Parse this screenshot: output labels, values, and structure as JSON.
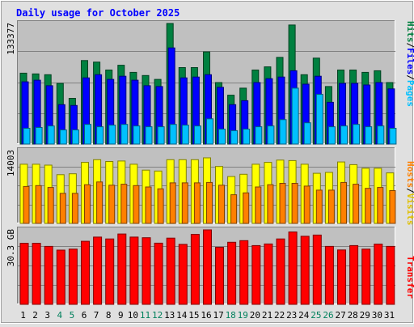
{
  "title": "Daily usage for October 2025",
  "chart_data": [
    {
      "type": "bar",
      "name": "hits-files-pages",
      "categories": [
        "1",
        "2",
        "3",
        "4",
        "5",
        "6",
        "7",
        "8",
        "9",
        "10",
        "11",
        "12",
        "13",
        "14",
        "15",
        "16",
        "17",
        "18",
        "19",
        "20",
        "21",
        "22",
        "23",
        "24",
        "25",
        "26",
        "27",
        "28",
        "29",
        "30",
        "31"
      ],
      "weekend_days": [
        "4",
        "5",
        "11",
        "12",
        "18",
        "19",
        "25",
        "26"
      ],
      "y_tick_label": "133377",
      "ylim": [
        0,
        153000
      ],
      "legend": [
        "Hits",
        "Files",
        "Pages"
      ],
      "series": [
        {
          "name": "Hits",
          "color": "#008040",
          "values": [
            90000,
            89000,
            88000,
            77000,
            58000,
            106000,
            104000,
            94000,
            100000,
            91000,
            87000,
            82000,
            153000,
            97000,
            97000,
            117000,
            78000,
            62000,
            71000,
            94000,
            98000,
            110000,
            151000,
            88000,
            109000,
            73000,
            94000,
            94000,
            91000,
            93000,
            78000
          ]
        },
        {
          "name": "Files",
          "color": "#0000ff",
          "values": [
            79000,
            81000,
            74000,
            50000,
            49000,
            84000,
            88000,
            82000,
            86000,
            81000,
            74000,
            73000,
            122000,
            84000,
            85000,
            88000,
            72000,
            50000,
            55000,
            78000,
            83000,
            85000,
            93000,
            76000,
            86000,
            53000,
            77000,
            77000,
            75000,
            78000,
            70000
          ]
        },
        {
          "name": "Pages",
          "color": "#00c0ff",
          "values": [
            20000,
            21000,
            23000,
            18000,
            18000,
            25000,
            22000,
            24000,
            25000,
            23000,
            22000,
            22000,
            25000,
            24000,
            23000,
            32000,
            19000,
            17000,
            19000,
            22000,
            23000,
            31000,
            71000,
            27000,
            63000,
            22000,
            23000,
            25000,
            22000,
            23000,
            20000
          ]
        }
      ]
    },
    {
      "type": "bar",
      "name": "hosts-visits",
      "categories": [
        "1",
        "2",
        "3",
        "4",
        "5",
        "6",
        "7",
        "8",
        "9",
        "10",
        "11",
        "12",
        "13",
        "14",
        "15",
        "16",
        "17",
        "18",
        "19",
        "20",
        "21",
        "22",
        "23",
        "24",
        "25",
        "26",
        "27",
        "28",
        "29",
        "30",
        "31"
      ],
      "y_tick_label": "14003",
      "ylim": [
        0,
        16000
      ],
      "legend": [
        "Hosts",
        "Visits"
      ],
      "series": [
        {
          "name": "Visits",
          "color": "#ffff00",
          "values": [
            13000,
            13000,
            12800,
            10700,
            10900,
            13400,
            14000,
            13600,
            13700,
            13000,
            11700,
            11500,
            14000,
            14000,
            14000,
            14400,
            12500,
            10300,
            10800,
            13000,
            13400,
            13900,
            13800,
            13000,
            11000,
            11200,
            13500,
            12900,
            12100,
            12100,
            11100
          ]
        },
        {
          "name": "Hosts",
          "color": "#ff8000",
          "values": [
            8100,
            8300,
            7900,
            6600,
            6600,
            8500,
            9100,
            8400,
            8600,
            8300,
            8000,
            7600,
            8900,
            8900,
            8900,
            9000,
            8400,
            6300,
            6700,
            8000,
            8500,
            8800,
            8800,
            8200,
            7300,
            7300,
            9000,
            8600,
            7700,
            7900,
            7200
          ]
        }
      ]
    },
    {
      "type": "bar",
      "name": "transfer",
      "categories": [
        "1",
        "2",
        "3",
        "4",
        "5",
        "6",
        "7",
        "8",
        "9",
        "10",
        "11",
        "12",
        "13",
        "14",
        "15",
        "16",
        "17",
        "18",
        "19",
        "20",
        "21",
        "22",
        "23",
        "24",
        "25",
        "26",
        "27",
        "28",
        "29",
        "30",
        "31"
      ],
      "y_tick_label": "30.3 GB",
      "ylim": [
        0,
        36000
      ],
      "legend": [
        "Transfer"
      ],
      "series": [
        {
          "name": "Transfer",
          "color": "#ff0000",
          "values": [
            29500,
            29500,
            28000,
            26200,
            26700,
            30500,
            32500,
            31600,
            34000,
            32500,
            32200,
            29600,
            32000,
            29000,
            33800,
            36000,
            27600,
            30000,
            30800,
            28400,
            29200,
            31600,
            35000,
            32900,
            33500,
            28000,
            26300,
            28400,
            26700,
            29100,
            28000
          ]
        }
      ]
    }
  ]
}
